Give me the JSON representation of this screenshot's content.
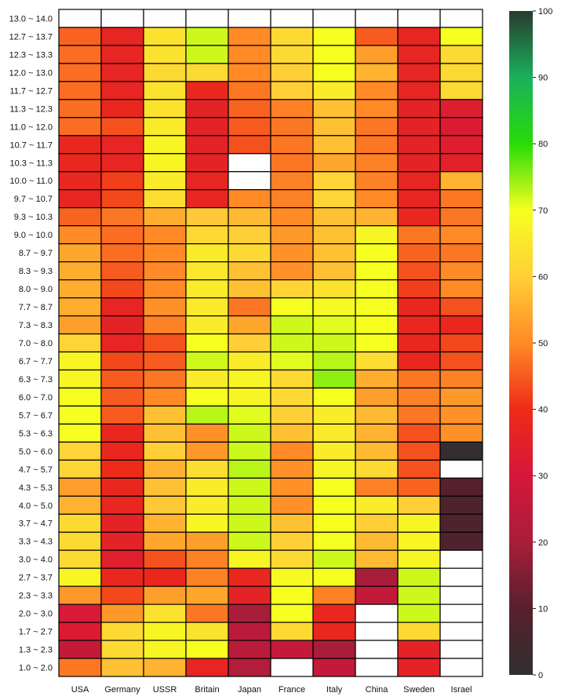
{
  "chart_data": {
    "type": "heatmap",
    "x_categories": [
      "USA",
      "Germany",
      "USSR",
      "Britain",
      "Japan",
      "France",
      "Italy",
      "China",
      "Sweden",
      "Israel"
    ],
    "y_categories": [
      "13.0 ~ 14.0",
      "12.7 ~ 13.7",
      "12.3 ~ 13.3",
      "12.0 ~ 13.0",
      "11.7 ~ 12.7",
      "11.3 ~ 12.3",
      "11.0 ~ 12.0",
      "10.7 ~ 11.7",
      "10.3 ~ 11.3",
      "10.0 ~ 11.0",
      "9.7 ~ 10.7",
      "9.3 ~ 10.3",
      "9.0 ~ 10.0",
      "8.7 ~ 9.7",
      "8.3 ~ 9.3",
      "8.0 ~ 9.0",
      "7.7 ~ 8.7",
      "7.3 ~ 8.3",
      "7.0 ~ 8.0",
      "6.7 ~ 7.7",
      "6.3 ~ 7.3",
      "6.0 ~ 7.0",
      "5.7 ~ 6.7",
      "5.3 ~ 6.3",
      "5.0 ~ 6.0",
      "4.7 ~ 5.7",
      "4.3 ~ 5.3",
      "4.0 ~ 5.0",
      "3.7 ~ 4.7",
      "3.3 ~ 4.3",
      "3.0 ~ 4.0",
      "2.7 ~ 3.7",
      "2.3 ~ 3.3",
      "2.0 ~ 3.0",
      "1.7 ~ 2.7",
      "1.3 ~ 2.3",
      "1.0 ~ 2.0"
    ],
    "values": [
      [
        null,
        null,
        null,
        null,
        null,
        null,
        null,
        null,
        null,
        null
      ],
      [
        46,
        37,
        64,
        72,
        50,
        62,
        70,
        45,
        37,
        70
      ],
      [
        47,
        37,
        64,
        72,
        50,
        62,
        70,
        53,
        37,
        62
      ],
      [
        47,
        37,
        62,
        62,
        50,
        60,
        70,
        56,
        37,
        62
      ],
      [
        47,
        37,
        64,
        38,
        48,
        60,
        66,
        50,
        37,
        62
      ],
      [
        47,
        38,
        64,
        36,
        46,
        49,
        58,
        50,
        36,
        33
      ],
      [
        47,
        44,
        66,
        36,
        45,
        48,
        58,
        48,
        36,
        32
      ],
      [
        38,
        37,
        68,
        36,
        44,
        48,
        58,
        48,
        36,
        33
      ],
      [
        38,
        37,
        68,
        36,
        null,
        48,
        54,
        49,
        36,
        35
      ],
      [
        38,
        42,
        66,
        37,
        null,
        49,
        61,
        49,
        37,
        56
      ],
      [
        37,
        43,
        63,
        37,
        50,
        49,
        61,
        50,
        37,
        48
      ],
      [
        46,
        48,
        55,
        59,
        57,
        50,
        58,
        56,
        38,
        48
      ],
      [
        50,
        47,
        50,
        62,
        60,
        52,
        58,
        68,
        48,
        50
      ],
      [
        54,
        47,
        50,
        66,
        62,
        51,
        58,
        70,
        46,
        48
      ],
      [
        55,
        45,
        50,
        65,
        58,
        51,
        58,
        70,
        44,
        50
      ],
      [
        55,
        43,
        50,
        66,
        58,
        61,
        64,
        70,
        42,
        50
      ],
      [
        55,
        37,
        51,
        66,
        48,
        70,
        69,
        70,
        38,
        44
      ],
      [
        53,
        36,
        49,
        66,
        54,
        72,
        71,
        70,
        38,
        38
      ],
      [
        61,
        37,
        44,
        70,
        60,
        72,
        72,
        70,
        38,
        43
      ],
      [
        68,
        43,
        45,
        72,
        66,
        71,
        73,
        63,
        38,
        44
      ],
      [
        68,
        45,
        48,
        66,
        68,
        62,
        75,
        55,
        48,
        49
      ],
      [
        70,
        45,
        50,
        70,
        68,
        62,
        70,
        53,
        49,
        52
      ],
      [
        70,
        45,
        58,
        73,
        71,
        60,
        66,
        57,
        48,
        51
      ],
      [
        70,
        38,
        58,
        51,
        72,
        58,
        66,
        56,
        44,
        51
      ],
      [
        61,
        38,
        60,
        52,
        72,
        50,
        66,
        57,
        44,
        1
      ],
      [
        61,
        40,
        56,
        63,
        73,
        51,
        68,
        62,
        44,
        null
      ],
      [
        53,
        38,
        58,
        66,
        72,
        51,
        70,
        49,
        46,
        10
      ],
      [
        56,
        38,
        59,
        66,
        72,
        51,
        70,
        66,
        60,
        8
      ],
      [
        62,
        36,
        56,
        68,
        72,
        58,
        70,
        60,
        68,
        8
      ],
      [
        62,
        36,
        54,
        53,
        72,
        60,
        70,
        57,
        68,
        8
      ],
      [
        62,
        34,
        44,
        49,
        68,
        62,
        72,
        57,
        68,
        null
      ],
      [
        68,
        38,
        38,
        49,
        38,
        69,
        70,
        20,
        72,
        null
      ],
      [
        52,
        43,
        53,
        54,
        36,
        70,
        49,
        26,
        72,
        null
      ],
      [
        31,
        52,
        64,
        48,
        20,
        70,
        38,
        null,
        72,
        null
      ],
      [
        32,
        62,
        68,
        64,
        24,
        62,
        38,
        null,
        62,
        null
      ],
      [
        26,
        62,
        68,
        70,
        24,
        26,
        20,
        null,
        36,
        null
      ],
      [
        48,
        58,
        56,
        37,
        22,
        null,
        26,
        null,
        36,
        null
      ]
    ],
    "colorbar": {
      "min": 0,
      "max": 100,
      "ticks": [
        0,
        10,
        20,
        30,
        40,
        50,
        60,
        70,
        80,
        90,
        100
      ]
    },
    "colormap": [
      "#303030",
      "#57202d",
      "#a81e3a",
      "#d6173a",
      "#ee2b18",
      "#ff8a26",
      "#ffcf38",
      "#f6ff20",
      "#28dc08",
      "#1ab05c",
      "#283b2e"
    ],
    "xlabel": "",
    "ylabel": "",
    "title": ""
  }
}
